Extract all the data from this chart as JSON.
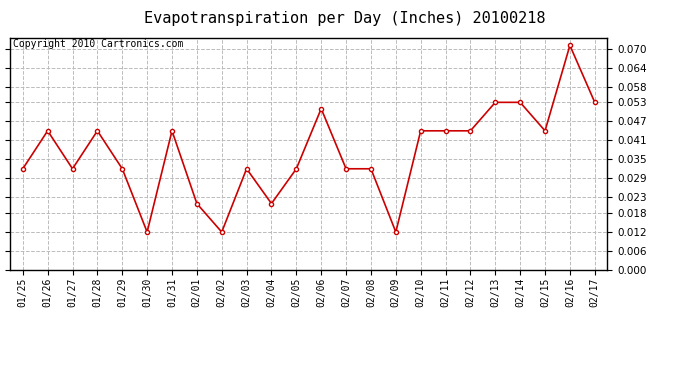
{
  "title": "Evapotranspiration per Day (Inches) 20100218",
  "copyright_text": "Copyright 2010 Cartronics.com",
  "x_labels": [
    "01/25",
    "01/26",
    "01/27",
    "01/28",
    "01/29",
    "01/30",
    "01/31",
    "02/01",
    "02/02",
    "02/03",
    "02/04",
    "02/05",
    "02/06",
    "02/07",
    "02/08",
    "02/09",
    "02/10",
    "02/11",
    "02/12",
    "02/13",
    "02/14",
    "02/15",
    "02/16",
    "02/17"
  ],
  "y_values": [
    0.032,
    0.044,
    0.032,
    0.044,
    0.032,
    0.012,
    0.044,
    0.021,
    0.012,
    0.032,
    0.021,
    0.032,
    0.051,
    0.032,
    0.032,
    0.012,
    0.044,
    0.044,
    0.044,
    0.053,
    0.053,
    0.044,
    0.071,
    0.053
  ],
  "y_ticks": [
    0.0,
    0.006,
    0.012,
    0.018,
    0.023,
    0.029,
    0.035,
    0.041,
    0.047,
    0.053,
    0.058,
    0.064,
    0.07
  ],
  "ylim": [
    0.0,
    0.0735
  ],
  "line_color": "#cc0000",
  "marker": "o",
  "marker_size": 3,
  "grid_color": "#bbbbbb",
  "bg_color": "#ffffff",
  "plot_bg_color": "#ffffff",
  "title_fontsize": 11,
  "copyright_fontsize": 7,
  "tick_fontsize": 7,
  "ytick_fontsize": 7.5
}
